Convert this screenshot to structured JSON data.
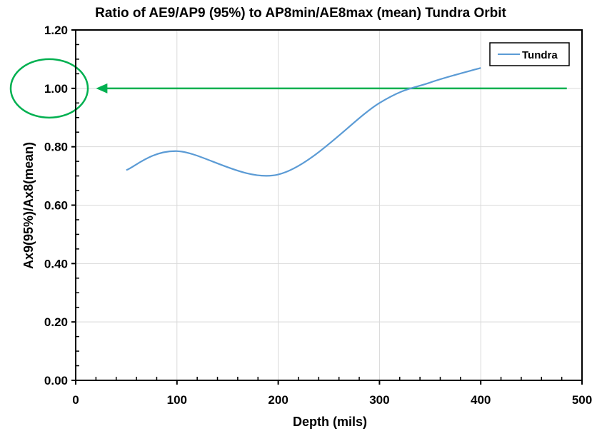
{
  "chart_data": {
    "type": "line",
    "title": "Ratio of AE9/AP9 (95%) to AP8min/AE8max (mean) Tundra Orbit",
    "xlabel": "Depth (mils)",
    "ylabel": "Ax9(95%)/Ax8(mean)",
    "xlim": [
      0,
      500
    ],
    "ylim": [
      0,
      1.2
    ],
    "x_ticks": [
      "0",
      "100",
      "200",
      "300",
      "400",
      "500"
    ],
    "y_ticks": [
      "0.00",
      "0.20",
      "0.40",
      "0.60",
      "0.80",
      "1.00",
      "1.20"
    ],
    "grid": true,
    "legend": "top-right",
    "series": [
      {
        "name": "Tundra",
        "color": "#5b9bd5",
        "x": [
          50,
          100,
          200,
          300,
          350,
          400
        ],
        "y": [
          0.72,
          0.785,
          0.705,
          0.95,
          1.02,
          1.07
        ]
      }
    ],
    "annotations": {
      "reference_line": {
        "y": 1.0,
        "x_start": 20,
        "x_end": 485,
        "color": "#00b050"
      },
      "highlight_circle": {
        "target_tick": "1.00",
        "color": "#00b050"
      }
    }
  }
}
